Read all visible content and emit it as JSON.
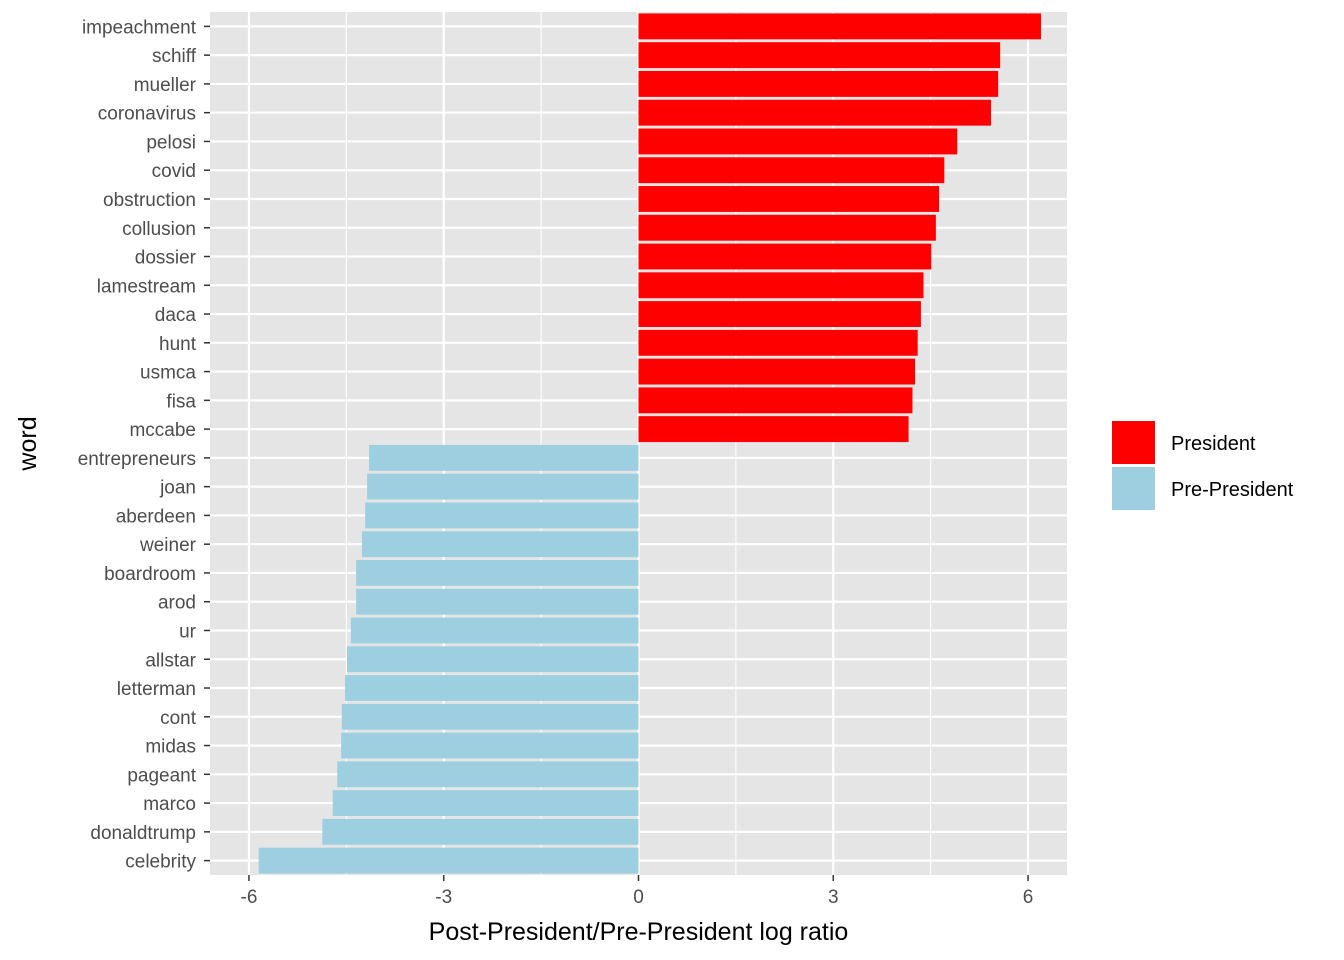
{
  "chart_data": {
    "type": "bar",
    "orientation": "horizontal",
    "xlabel": "Post-President/Pre-President log ratio",
    "ylabel": "word",
    "xlim": [
      -6.6,
      6.6
    ],
    "x_ticks": [
      -6,
      -3,
      0,
      3,
      6
    ],
    "x_tick_labels": [
      "-6",
      "-3",
      "0",
      "3",
      "6"
    ],
    "grid": true,
    "legend_position": "right",
    "colors": {
      "President": "#ff0000",
      "Pre-President": "#9ecfe0",
      "panel": "#e5e5e5",
      "grid": "#ffffff"
    },
    "legend": [
      {
        "label": "President",
        "color": "#ff0000"
      },
      {
        "label": "Pre-President",
        "color": "#9ecfe0"
      }
    ],
    "bars": [
      {
        "word": "impeachment",
        "value": 6.2,
        "group": "President"
      },
      {
        "word": "schiff",
        "value": 5.57,
        "group": "President"
      },
      {
        "word": "mueller",
        "value": 5.54,
        "group": "President"
      },
      {
        "word": "coronavirus",
        "value": 5.43,
        "group": "President"
      },
      {
        "word": "pelosi",
        "value": 4.91,
        "group": "President"
      },
      {
        "word": "covid",
        "value": 4.71,
        "group": "President"
      },
      {
        "word": "obstruction",
        "value": 4.63,
        "group": "President"
      },
      {
        "word": "collusion",
        "value": 4.58,
        "group": "President"
      },
      {
        "word": "dossier",
        "value": 4.51,
        "group": "President"
      },
      {
        "word": "lamestream",
        "value": 4.39,
        "group": "President"
      },
      {
        "word": "daca",
        "value": 4.35,
        "group": "President"
      },
      {
        "word": "hunt",
        "value": 4.3,
        "group": "President"
      },
      {
        "word": "usmca",
        "value": 4.26,
        "group": "President"
      },
      {
        "word": "fisa",
        "value": 4.22,
        "group": "President"
      },
      {
        "word": "mccabe",
        "value": 4.16,
        "group": "President"
      },
      {
        "word": "entrepreneurs",
        "value": -4.15,
        "group": "Pre-President"
      },
      {
        "word": "joan",
        "value": -4.18,
        "group": "Pre-President"
      },
      {
        "word": "aberdeen",
        "value": -4.21,
        "group": "Pre-President"
      },
      {
        "word": "weiner",
        "value": -4.26,
        "group": "Pre-President"
      },
      {
        "word": "boardroom",
        "value": -4.35,
        "group": "Pre-President"
      },
      {
        "word": "arod",
        "value": -4.35,
        "group": "Pre-President"
      },
      {
        "word": "ur",
        "value": -4.43,
        "group": "Pre-President"
      },
      {
        "word": "allstar",
        "value": -4.49,
        "group": "Pre-President"
      },
      {
        "word": "letterman",
        "value": -4.52,
        "group": "Pre-President"
      },
      {
        "word": "cont",
        "value": -4.57,
        "group": "Pre-President"
      },
      {
        "word": "midas",
        "value": -4.58,
        "group": "Pre-President"
      },
      {
        "word": "pageant",
        "value": -4.64,
        "group": "Pre-President"
      },
      {
        "word": "marco",
        "value": -4.71,
        "group": "Pre-President"
      },
      {
        "word": "donaldtrump",
        "value": -4.87,
        "group": "Pre-President"
      },
      {
        "word": "celebrity",
        "value": -5.85,
        "group": "Pre-President"
      }
    ]
  }
}
